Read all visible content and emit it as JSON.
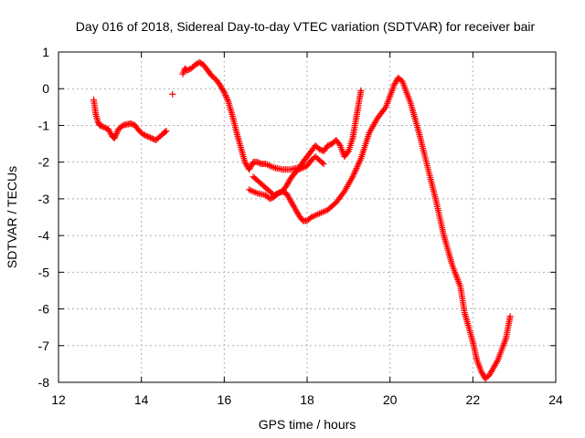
{
  "chart_data": {
    "type": "scatter",
    "title": "Day 016 of 2018, Sidereal Day-to-day VTEC variation (SDTVAR) for receiver bair",
    "xlabel": "GPS time / hours",
    "ylabel": "SDTVAR / TECUs",
    "xlim": [
      12,
      24
    ],
    "ylim": [
      -8,
      1
    ],
    "xticks": [
      "12",
      "14",
      "16",
      "18",
      "20",
      "22",
      "24"
    ],
    "yticks": [
      "1",
      "0",
      "-1",
      "-2",
      "-3",
      "-4",
      "-5",
      "-6",
      "-7",
      "-8"
    ],
    "grid": true,
    "marker": "+",
    "color": "#ff0000",
    "series": [
      {
        "name": "segment-1",
        "x": [
          12.85,
          12.9,
          12.95,
          13.0,
          13.1,
          13.2,
          13.3,
          13.35,
          13.45,
          13.55,
          13.65,
          13.75,
          13.85,
          13.95,
          14.05,
          14.15,
          14.25,
          14.35,
          14.45,
          14.55,
          14.6
        ],
        "y": [
          -0.3,
          -0.7,
          -0.9,
          -1.0,
          -1.05,
          -1.1,
          -1.3,
          -1.35,
          -1.1,
          -1.0,
          -0.97,
          -0.95,
          -1.0,
          -1.15,
          -1.25,
          -1.3,
          -1.35,
          -1.4,
          -1.3,
          -1.2,
          -1.15
        ]
      },
      {
        "name": "segment-2",
        "x": [
          14.75
        ],
        "y": [
          -0.15
        ]
      },
      {
        "name": "segment-3",
        "x": [
          15.0,
          15.05,
          15.1,
          15.2,
          15.3,
          15.4,
          15.5,
          15.6,
          15.7,
          15.8,
          15.9,
          16.0,
          16.1,
          16.2,
          16.3,
          16.4,
          16.5,
          16.6,
          16.7,
          16.8,
          16.9,
          17.0,
          17.2,
          17.4,
          17.6,
          17.8,
          17.9,
          18.0,
          18.1,
          18.2,
          18.3,
          18.4,
          18.5,
          18.6,
          18.7,
          18.8,
          18.9,
          19.0,
          19.1,
          19.2,
          19.3
        ],
        "y": [
          0.4,
          0.55,
          0.5,
          0.55,
          0.65,
          0.72,
          0.65,
          0.5,
          0.35,
          0.25,
          0.1,
          -0.1,
          -0.35,
          -0.75,
          -1.2,
          -1.6,
          -2.0,
          -2.2,
          -2.0,
          -2.0,
          -2.05,
          -2.05,
          -2.15,
          -2.2,
          -2.2,
          -2.15,
          -2.0,
          -1.85,
          -1.7,
          -1.55,
          -1.65,
          -1.7,
          -1.55,
          -1.5,
          -1.4,
          -1.55,
          -1.85,
          -1.7,
          -1.35,
          -0.7,
          -0.05
        ]
      },
      {
        "name": "segment-4",
        "x": [
          16.6,
          16.8,
          17.0,
          17.1,
          17.2,
          17.3,
          17.4,
          17.5,
          17.6,
          17.7,
          17.8,
          17.9,
          18.0,
          18.1,
          18.3,
          18.5,
          18.7,
          18.9,
          19.1,
          19.3,
          19.5,
          19.7,
          19.9,
          20.0,
          20.1,
          20.2,
          20.3,
          20.5,
          20.7,
          20.9,
          21.1,
          21.3,
          21.5,
          21.7,
          21.8,
          21.9,
          22.0,
          22.1,
          22.2,
          22.3,
          22.4,
          22.6,
          22.8,
          22.9
        ],
        "y": [
          -2.75,
          -2.85,
          -2.9,
          -3.0,
          -2.95,
          -2.85,
          -2.8,
          -2.85,
          -3.05,
          -3.25,
          -3.45,
          -3.6,
          -3.6,
          -3.5,
          -3.4,
          -3.3,
          -3.1,
          -2.8,
          -2.4,
          -1.9,
          -1.2,
          -0.8,
          -0.5,
          -0.2,
          0.1,
          0.3,
          0.2,
          -0.4,
          -1.2,
          -2.1,
          -3.0,
          -4.0,
          -4.8,
          -5.4,
          -6.1,
          -6.5,
          -6.9,
          -7.4,
          -7.7,
          -7.9,
          -7.8,
          -7.4,
          -6.8,
          -6.2
        ]
      },
      {
        "name": "segment-5",
        "x": [
          16.7,
          16.8,
          16.9,
          17.0,
          17.1,
          17.2,
          17.3,
          17.4,
          17.5,
          17.6,
          17.7,
          17.8,
          17.9,
          18.0,
          18.1,
          18.2,
          18.3,
          18.4
        ],
        "y": [
          -2.4,
          -2.5,
          -2.6,
          -2.7,
          -2.8,
          -2.9,
          -2.85,
          -2.8,
          -2.65,
          -2.45,
          -2.3,
          -2.2,
          -2.15,
          -2.1,
          -1.95,
          -1.85,
          -1.95,
          -2.05
        ]
      }
    ]
  }
}
